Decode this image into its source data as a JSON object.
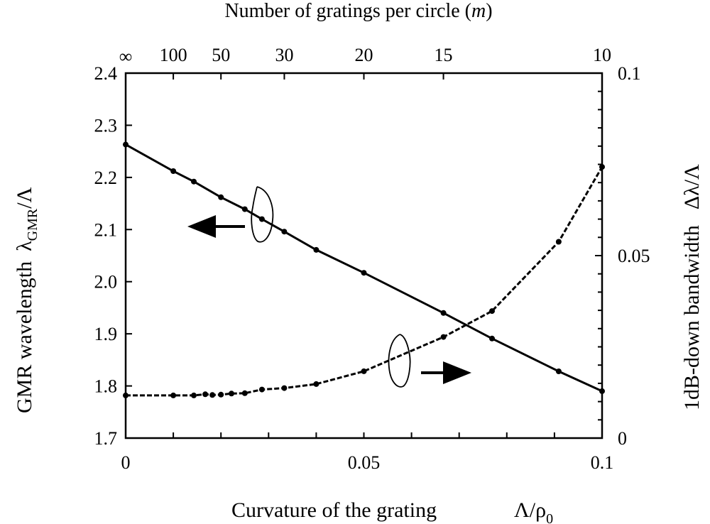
{
  "chart_data": {
    "type": "line",
    "title": "",
    "top_axis": {
      "label": "Number of gratings per circle (m)",
      "label_prefix": "Number of gratings per circle (",
      "label_var": "m",
      "label_suffix": ")",
      "ticks": [
        {
          "label": "∞",
          "x": 0
        },
        {
          "label": "100",
          "x": 0.01
        },
        {
          "label": "50",
          "x": 0.02
        },
        {
          "label": "30",
          "x": 0.0333
        },
        {
          "label": "20",
          "x": 0.05
        },
        {
          "label": "15",
          "x": 0.0667
        },
        {
          "label": "10",
          "x": 0.1
        }
      ]
    },
    "x_axis": {
      "label": "Curvature of the grating Λ/ρ0",
      "label_text": "Curvature of the grating",
      "label_symbol": "Λ/ρ",
      "label_sub": "0",
      "range": [
        0,
        0.1
      ],
      "ticks": [
        {
          "label": "0",
          "value": 0
        },
        {
          "label": "0.05",
          "value": 0.05
        },
        {
          "label": "0.1",
          "value": 0.1
        }
      ]
    },
    "y_left": {
      "label": "GMR wavelength λGMR/Λ",
      "label_text": "GMR wavelength",
      "label_symbol": "λ",
      "label_sub": "GMR",
      "label_tail": "/Λ",
      "range": [
        1.7,
        2.4
      ],
      "ticks": [
        "1.7",
        "1.8",
        "1.9",
        "2.0",
        "2.1",
        "2.2",
        "2.3",
        "2.4"
      ]
    },
    "y_right": {
      "label": "1dB-down bandwidth Δλ/Λ",
      "label_text": "1dB-down bandwidth",
      "label_symbol": "Δλ/Λ",
      "range": [
        0,
        0.1
      ],
      "ticks": [
        {
          "label": "0",
          "value": 0
        },
        {
          "label": "0.05",
          "value": 0.05
        },
        {
          "label": "0.1",
          "value": 0.1
        }
      ]
    },
    "grid": false,
    "series": [
      {
        "axis": "left",
        "style": "solid",
        "x": [
          0,
          0.01,
          0.0143,
          0.02,
          0.025,
          0.0286,
          0.0333,
          0.04,
          0.05,
          0.0667,
          0.0769,
          0.0909,
          0.1
        ],
        "y": [
          2.263,
          2.212,
          2.192,
          2.162,
          2.139,
          2.12,
          2.096,
          2.061,
          2.017,
          1.94,
          1.891,
          1.828,
          1.79
        ]
      },
      {
        "axis": "right",
        "style": "dashed",
        "x": [
          0,
          0.01,
          0.0143,
          0.0167,
          0.0182,
          0.02,
          0.0222,
          0.025,
          0.0286,
          0.0333,
          0.04,
          0.05,
          0.0667,
          0.0769,
          0.0909,
          0.1
        ],
        "y": [
          0.0117,
          0.0117,
          0.0117,
          0.012,
          0.0118,
          0.0119,
          0.0122,
          0.0123,
          0.0133,
          0.0137,
          0.0148,
          0.0183,
          0.0277,
          0.0348,
          0.0538,
          0.0743
        ]
      }
    ]
  }
}
